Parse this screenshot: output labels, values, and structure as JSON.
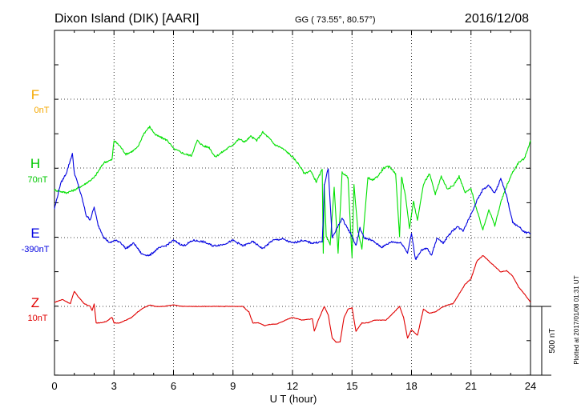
{
  "header": {
    "station": "Dixon Island (DIK)  [AARI]",
    "coords": "GG ( 73.55°,  80.57°)",
    "date": "2016/12/08"
  },
  "footer": {
    "plotted": "Plotted at 2017/01/08 01:31  UT"
  },
  "chart_data": {
    "type": "line",
    "xlabel": "U T (hour)",
    "xlim": [
      0,
      24
    ],
    "xticks": [
      0,
      3,
      6,
      9,
      12,
      15,
      18,
      21,
      24
    ],
    "scale_label": "500 nT",
    "grid": true,
    "series": [
      {
        "name": "F",
        "baseline_label": "0nT",
        "color": "#f5a800",
        "x": [],
        "y": []
      },
      {
        "name": "H",
        "baseline_label": "70nT",
        "color": "#00e000",
        "x": [
          0,
          0.3,
          0.6,
          1.0,
          1.5,
          2.0,
          2.5,
          2.9,
          3.0,
          3.3,
          3.6,
          3.9,
          4.2,
          4.5,
          4.8,
          5.1,
          5.4,
          5.7,
          6.0,
          6.3,
          6.6,
          6.9,
          7.2,
          7.5,
          7.8,
          8.1,
          8.4,
          8.7,
          9.0,
          9.3,
          9.6,
          9.9,
          10.2,
          10.5,
          10.8,
          11.1,
          11.4,
          11.7,
          12.0,
          12.3,
          12.6,
          12.9,
          13.2,
          13.5,
          13.55,
          13.6,
          13.7,
          13.9,
          14.1,
          14.3,
          14.5,
          14.8,
          15.0,
          15.1,
          15.3,
          15.5,
          15.8,
          16.0,
          16.3,
          16.6,
          16.9,
          17.2,
          17.4,
          17.5,
          17.7,
          17.9,
          18.1,
          18.3,
          18.6,
          18.9,
          19.2,
          19.5,
          19.8,
          20.1,
          20.4,
          20.7,
          21.0,
          21.3,
          21.6,
          21.9,
          22.2,
          22.5,
          22.8,
          23.1,
          23.4,
          23.7,
          24.0
        ],
        "y": [
          -160,
          -170,
          -180,
          -160,
          -120,
          -70,
          40,
          60,
          200,
          160,
          100,
          120,
          150,
          250,
          300,
          240,
          220,
          200,
          140,
          120,
          100,
          90,
          200,
          160,
          150,
          80,
          110,
          140,
          170,
          210,
          190,
          230,
          200,
          260,
          220,
          170,
          150,
          120,
          80,
          30,
          -40,
          -20,
          -100,
          -10,
          -620,
          -120,
          -500,
          -560,
          -140,
          -620,
          -30,
          -70,
          -650,
          -120,
          -460,
          -590,
          -70,
          -90,
          -60,
          0,
          10,
          -40,
          -500,
          -60,
          -210,
          -440,
          -240,
          -380,
          -120,
          -40,
          -190,
          -60,
          -150,
          -130,
          -60,
          -180,
          -150,
          -310,
          -450,
          -300,
          -420,
          -250,
          -130,
          -30,
          40,
          70,
          200
        ]
      },
      {
        "name": "E",
        "baseline_label": "-390nT",
        "color": "#0000e0",
        "x": [
          0,
          0.3,
          0.6,
          0.9,
          1.0,
          1.2,
          1.4,
          1.6,
          1.8,
          2.0,
          2.2,
          2.5,
          2.8,
          3.0,
          3.3,
          3.6,
          4.0,
          4.4,
          4.8,
          5.2,
          5.6,
          6.0,
          6.5,
          7.0,
          7.5,
          8.0,
          8.5,
          9.0,
          9.5,
          10.0,
          10.5,
          11.0,
          11.5,
          12.0,
          12.5,
          13.0,
          13.5,
          13.55,
          13.6,
          13.8,
          14.0,
          14.5,
          15.0,
          15.2,
          15.4,
          15.6,
          16.0,
          16.5,
          17.0,
          17.5,
          17.8,
          18.0,
          18.2,
          18.5,
          18.8,
          19.0,
          19.3,
          19.6,
          20.0,
          20.3,
          20.6,
          21.0,
          21.3,
          21.6,
          21.9,
          22.2,
          22.5,
          22.8,
          23.1,
          23.4,
          23.7,
          24.0
        ],
        "y": [
          210,
          390,
          470,
          610,
          470,
          380,
          280,
          160,
          130,
          220,
          90,
          0,
          -40,
          -20,
          -30,
          -80,
          -40,
          -120,
          -130,
          -80,
          -60,
          -20,
          -60,
          -20,
          -30,
          -60,
          -50,
          -20,
          -60,
          -30,
          -80,
          -20,
          -10,
          -40,
          -20,
          -40,
          -30,
          130,
          380,
          500,
          0,
          140,
          10,
          -60,
          70,
          0,
          -20,
          -70,
          -30,
          -40,
          -110,
          30,
          -160,
          -90,
          -80,
          -130,
          0,
          -40,
          40,
          80,
          50,
          170,
          270,
          350,
          380,
          320,
          430,
          300,
          110,
          80,
          40,
          30
        ]
      },
      {
        "name": "Z",
        "baseline_label": "10nT",
        "color": "#e00000",
        "x": [
          0,
          0.4,
          0.8,
          1.0,
          1.2,
          1.5,
          1.8,
          1.9,
          2.0,
          2.1,
          2.3,
          2.6,
          2.9,
          3.0,
          3.3,
          3.6,
          3.9,
          4.2,
          4.5,
          4.8,
          5.1,
          5.5,
          6.0,
          6.5,
          7.0,
          7.5,
          8.0,
          8.5,
          9.0,
          9.5,
          9.8,
          10.0,
          10.3,
          10.6,
          10.9,
          11.2,
          11.5,
          11.8,
          12.0,
          12.5,
          13.0,
          13.1,
          13.3,
          13.6,
          13.8,
          14.0,
          14.2,
          14.4,
          14.6,
          14.8,
          15.0,
          15.2,
          15.5,
          15.8,
          16.1,
          16.4,
          16.7,
          17.0,
          17.4,
          17.6,
          17.8,
          18.0,
          18.3,
          18.6,
          18.9,
          19.2,
          19.5,
          19.8,
          20.1,
          20.4,
          20.7,
          21.0,
          21.3,
          21.6,
          21.9,
          22.2,
          22.5,
          22.8,
          23.1,
          23.4,
          23.7,
          24.0
        ],
        "y": [
          30,
          50,
          20,
          110,
          70,
          20,
          0,
          -30,
          20,
          -120,
          -120,
          -110,
          -80,
          -120,
          -120,
          -100,
          -80,
          -40,
          -10,
          10,
          0,
          0,
          10,
          0,
          0,
          0,
          0,
          0,
          0,
          0,
          -40,
          -120,
          -120,
          -140,
          -130,
          -130,
          -110,
          -90,
          -80,
          -100,
          -90,
          -180,
          -100,
          0,
          -60,
          -230,
          -260,
          -260,
          -80,
          -20,
          -10,
          -180,
          -120,
          -120,
          -100,
          -100,
          -100,
          -60,
          0,
          -80,
          -230,
          -170,
          -210,
          -20,
          -50,
          -40,
          -10,
          10,
          20,
          90,
          160,
          200,
          330,
          370,
          330,
          290,
          250,
          260,
          220,
          140,
          90,
          30
        ]
      }
    ]
  }
}
